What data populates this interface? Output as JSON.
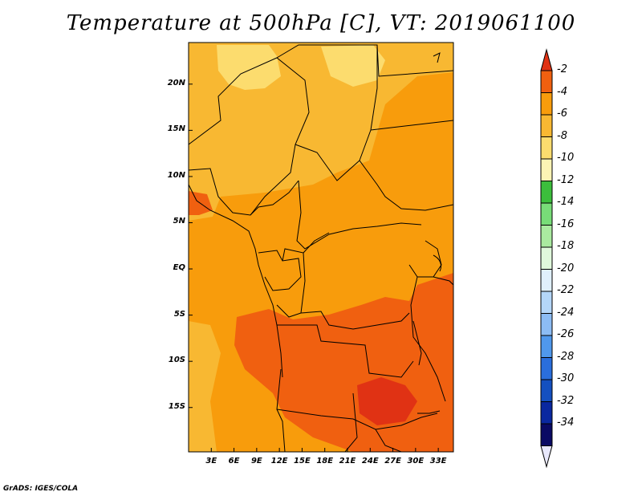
{
  "title": "Temperature at 500hPa [C], VT: 2019061100",
  "credit": "GrADS: IGES/COLA",
  "map": {
    "lat_labels": [
      "20N",
      "15N",
      "10N",
      "5N",
      "EQ",
      "5S",
      "10S",
      "15S"
    ],
    "lat_values": [
      20,
      15,
      10,
      5,
      0,
      -5,
      -10,
      -15
    ],
    "lon_labels": [
      "3E",
      "6E",
      "9E",
      "12E",
      "15E",
      "18E",
      "21E",
      "24E",
      "27E",
      "30E",
      "33E"
    ],
    "lon_values": [
      3,
      6,
      9,
      12,
      15,
      18,
      21,
      24,
      27,
      30,
      33
    ],
    "lat_range": [
      -19.8,
      24.5
    ],
    "lon_range": [
      0,
      35
    ]
  },
  "colorbar": {
    "labels": [
      "-2",
      "-4",
      "-6",
      "-8",
      "-10",
      "-12",
      "-14",
      "-16",
      "-18",
      "-20",
      "-22",
      "-24",
      "-26",
      "-28",
      "-30",
      "-32",
      "-34"
    ],
    "colors": [
      "#e03214",
      "#f06010",
      "#f89c0c",
      "#f8b832",
      "#fcdc6e",
      "#fcf4b4",
      "#3cbe3c",
      "#78dc78",
      "#aaeaa0",
      "#e0f8dc",
      "#e0f0fc",
      "#b4d6f8",
      "#8cbcf4",
      "#5098ec",
      "#2a6edc",
      "#1450c0",
      "#0a28a0",
      "#0a0a64",
      "#e8e8fc"
    ]
  }
}
